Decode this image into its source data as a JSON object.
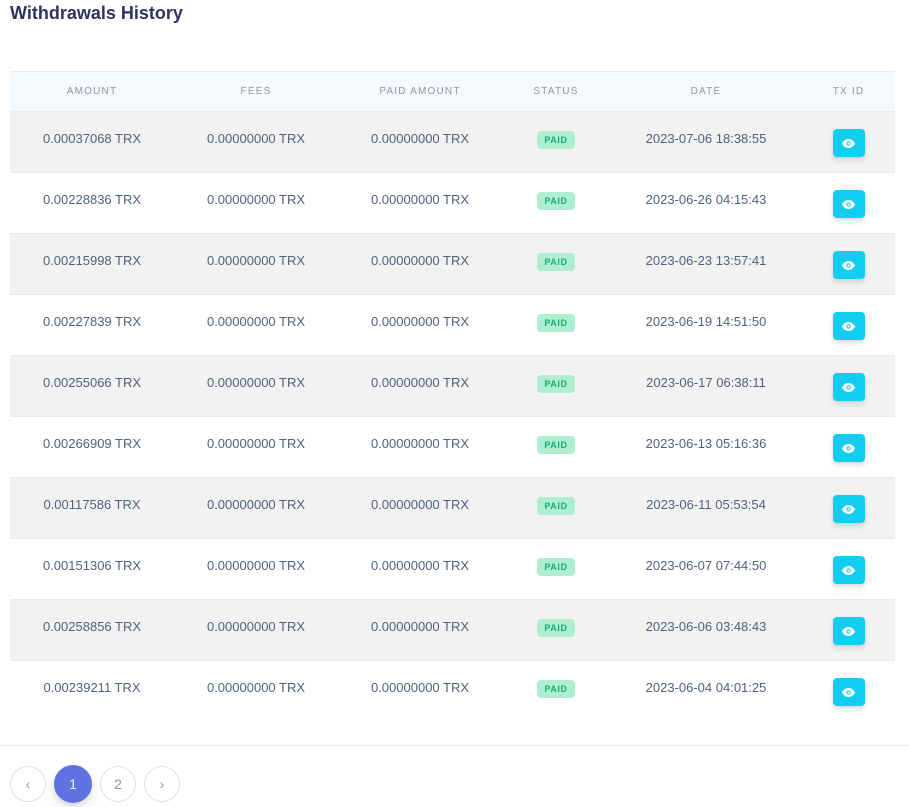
{
  "page": {
    "title": "Withdrawals History"
  },
  "table": {
    "headers": [
      "AMOUNT",
      "FEES",
      "PAID AMOUNT",
      "STATUS",
      "DATE",
      "TX ID"
    ],
    "rows": [
      {
        "amount": "0.00037068 TRX",
        "fees": "0.00000000 TRX",
        "paid_amount": "0.00000000 TRX",
        "status": "PAID",
        "date": "2023-07-06 18:38:55"
      },
      {
        "amount": "0.00228836 TRX",
        "fees": "0.00000000 TRX",
        "paid_amount": "0.00000000 TRX",
        "status": "PAID",
        "date": "2023-06-26 04:15:43"
      },
      {
        "amount": "0.00215998 TRX",
        "fees": "0.00000000 TRX",
        "paid_amount": "0.00000000 TRX",
        "status": "PAID",
        "date": "2023-06-23 13:57:41"
      },
      {
        "amount": "0.00227839 TRX",
        "fees": "0.00000000 TRX",
        "paid_amount": "0.00000000 TRX",
        "status": "PAID",
        "date": "2023-06-19 14:51:50"
      },
      {
        "amount": "0.00255066 TRX",
        "fees": "0.00000000 TRX",
        "paid_amount": "0.00000000 TRX",
        "status": "PAID",
        "date": "2023-06-17 06:38:11"
      },
      {
        "amount": "0.00266909 TRX",
        "fees": "0.00000000 TRX",
        "paid_amount": "0.00000000 TRX",
        "status": "PAID",
        "date": "2023-06-13 05:16:36"
      },
      {
        "amount": "0.00117586 TRX",
        "fees": "0.00000000 TRX",
        "paid_amount": "0.00000000 TRX",
        "status": "PAID",
        "date": "2023-06-11 05:53:54"
      },
      {
        "amount": "0.00151306 TRX",
        "fees": "0.00000000 TRX",
        "paid_amount": "0.00000000 TRX",
        "status": "PAID",
        "date": "2023-06-07 07:44:50"
      },
      {
        "amount": "0.00258856 TRX",
        "fees": "0.00000000 TRX",
        "paid_amount": "0.00000000 TRX",
        "status": "PAID",
        "date": "2023-06-06 03:48:43"
      },
      {
        "amount": "0.00239211 TRX",
        "fees": "0.00000000 TRX",
        "paid_amount": "0.00000000 TRX",
        "status": "PAID",
        "date": "2023-06-04 04:01:25"
      }
    ],
    "tx_button_icon": "eye-icon"
  },
  "pagination": {
    "prev_label": "‹",
    "pages": [
      "1",
      "2"
    ],
    "active_page": "1",
    "next_label": "›"
  },
  "colors": {
    "status_paid_text": "#1aae6f",
    "status_paid_bg": "#b0eed3",
    "tx_button": "#11cdef",
    "active_page": "#5e72e4"
  }
}
